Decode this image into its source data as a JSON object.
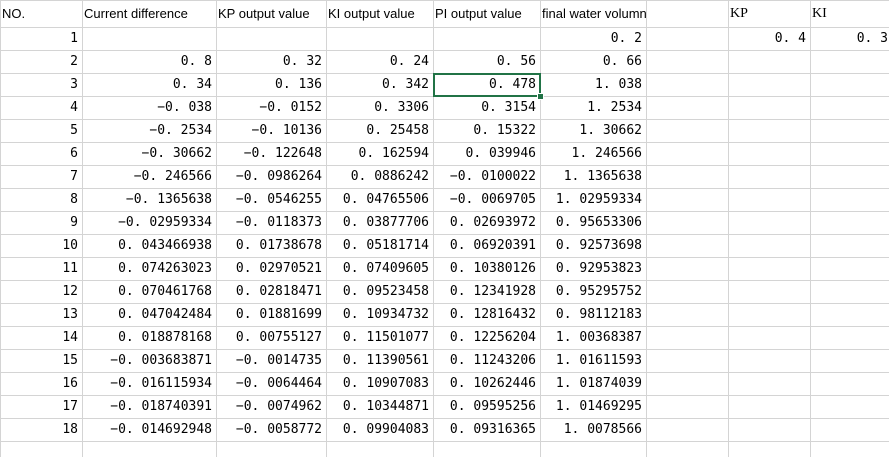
{
  "headers": {
    "no": "NO.",
    "current_difference": "Current difference",
    "kp_output": "KP output value",
    "ki_output": "KI output value",
    "pi_output": "PI output value",
    "final_water": "final water volumn",
    "kp": "KP",
    "ki": "KI"
  },
  "params": {
    "kp_value": "0. 4",
    "ki_value": "0. 3"
  },
  "rows": [
    {
      "no": "1",
      "diff": "",
      "kp": "",
      "ki": "",
      "pi": "",
      "water": "0. 2"
    },
    {
      "no": "2",
      "diff": "0. 8",
      "kp": "0. 32",
      "ki": "0. 24",
      "pi": "0. 56",
      "water": "0. 66"
    },
    {
      "no": "3",
      "diff": "0. 34",
      "kp": "0. 136",
      "ki": "0. 342",
      "pi": "0. 478",
      "water": "1. 038"
    },
    {
      "no": "4",
      "diff": "−0. 038",
      "kp": "−0. 0152",
      "ki": "0. 3306",
      "pi": "0. 3154",
      "water": "1. 2534"
    },
    {
      "no": "5",
      "diff": "−0. 2534",
      "kp": "−0. 10136",
      "ki": "0. 25458",
      "pi": "0. 15322",
      "water": "1. 30662"
    },
    {
      "no": "6",
      "diff": "−0. 30662",
      "kp": "−0. 122648",
      "ki": "0. 162594",
      "pi": "0. 039946",
      "water": "1. 246566"
    },
    {
      "no": "7",
      "diff": "−0. 246566",
      "kp": "−0. 0986264",
      "ki": "0. 0886242",
      "pi": "−0. 0100022",
      "water": "1. 1365638"
    },
    {
      "no": "8",
      "diff": "−0. 1365638",
      "kp": "−0. 0546255",
      "ki": "0. 04765506",
      "pi": "−0. 0069705",
      "water": "1. 02959334"
    },
    {
      "no": "9",
      "diff": "−0. 02959334",
      "kp": "−0. 0118373",
      "ki": "0. 03877706",
      "pi": "0. 02693972",
      "water": "0. 95653306"
    },
    {
      "no": "10",
      "diff": "0. 043466938",
      "kp": "0. 01738678",
      "ki": "0. 05181714",
      "pi": "0. 06920391",
      "water": "0. 92573698"
    },
    {
      "no": "11",
      "diff": "0. 074263023",
      "kp": "0. 02970521",
      "ki": "0. 07409605",
      "pi": "0. 10380126",
      "water": "0. 92953823"
    },
    {
      "no": "12",
      "diff": "0. 070461768",
      "kp": "0. 02818471",
      "ki": "0. 09523458",
      "pi": "0. 12341928",
      "water": "0. 95295752"
    },
    {
      "no": "13",
      "diff": "0. 047042484",
      "kp": "0. 01881699",
      "ki": "0. 10934732",
      "pi": "0. 12816432",
      "water": "0. 98112183"
    },
    {
      "no": "14",
      "diff": "0. 018878168",
      "kp": "0. 00755127",
      "ki": "0. 11501077",
      "pi": "0. 12256204",
      "water": "1. 00368387"
    },
    {
      "no": "15",
      "diff": "−0. 003683871",
      "kp": "−0. 0014735",
      "ki": "0. 11390561",
      "pi": "0. 11243206",
      "water": "1. 01611593"
    },
    {
      "no": "16",
      "diff": "−0. 016115934",
      "kp": "−0. 0064464",
      "ki": "0. 10907083",
      "pi": "0. 10262446",
      "water": "1. 01874039"
    },
    {
      "no": "17",
      "diff": "−0. 018740391",
      "kp": "−0. 0074962",
      "ki": "0. 10344871",
      "pi": "0. 09595256",
      "water": "1. 01469295"
    },
    {
      "no": "18",
      "diff": "−0. 014692948",
      "kp": "−0. 0058772",
      "ki": "0. 09904083",
      "pi": "0. 09316365",
      "water": "1. 0078566"
    }
  ],
  "colors": {
    "gridline": "#d4d4d4",
    "selection": "#217346"
  },
  "selection": {
    "row": "3",
    "column": "pi"
  }
}
